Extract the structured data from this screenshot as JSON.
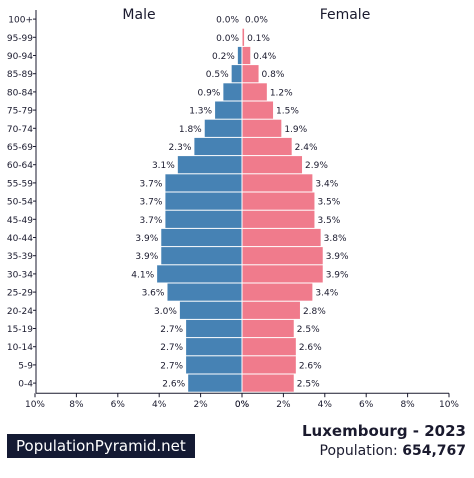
{
  "chart_data": {
    "type": "bar",
    "left_label": "Male",
    "right_label": "Female",
    "categories": [
      "100+",
      "95-99",
      "90-94",
      "85-89",
      "80-84",
      "75-79",
      "70-74",
      "65-69",
      "60-64",
      "55-59",
      "50-54",
      "45-49",
      "40-44",
      "35-39",
      "30-34",
      "25-29",
      "20-24",
      "15-19",
      "10-14",
      "5-9",
      "0-4"
    ],
    "series": [
      {
        "name": "Male",
        "color": "#4682b4",
        "values": [
          0.0,
          0.0,
          0.2,
          0.5,
          0.9,
          1.3,
          1.8,
          2.3,
          3.1,
          3.7,
          3.7,
          3.7,
          3.9,
          3.9,
          4.1,
          3.6,
          3.0,
          2.7,
          2.7,
          2.7,
          2.6
        ]
      },
      {
        "name": "Female",
        "color": "#f07b8c",
        "values": [
          0.0,
          0.1,
          0.4,
          0.8,
          1.2,
          1.5,
          1.9,
          2.4,
          2.9,
          3.4,
          3.5,
          3.5,
          3.8,
          3.9,
          3.9,
          3.4,
          2.8,
          2.5,
          2.6,
          2.6,
          2.5
        ]
      }
    ],
    "value_labels": {
      "Male": [
        "0.0%",
        "0.0%",
        "0.2%",
        "0.5%",
        "0.9%",
        "1.3%",
        "1.8%",
        "2.3%",
        "3.1%",
        "3.7%",
        "3.7%",
        "3.7%",
        "3.9%",
        "3.9%",
        "4.1%",
        "3.6%",
        "3.0%",
        "2.7%",
        "2.7%",
        "2.7%",
        "2.6%"
      ],
      "Female": [
        "0.0%",
        "0.1%",
        "0.4%",
        "0.8%",
        "1.2%",
        "1.5%",
        "1.9%",
        "2.4%",
        "2.9%",
        "3.4%",
        "3.5%",
        "3.5%",
        "3.8%",
        "3.9%",
        "3.9%",
        "3.4%",
        "2.8%",
        "2.5%",
        "2.6%",
        "2.6%",
        "2.5%"
      ]
    },
    "xlim": [
      0,
      10
    ],
    "xticks_left": [
      "10%",
      "8%",
      "6%",
      "4%",
      "2%",
      "0%"
    ],
    "xticks_right": [
      "0%",
      "2%",
      "4%",
      "6%",
      "8%",
      "10%"
    ],
    "grid": false
  },
  "footer": {
    "brand": "PopulationPyramid.net",
    "country_year": "Luxembourg - 2023",
    "population_label": "Population:",
    "population_value": "654,767"
  }
}
